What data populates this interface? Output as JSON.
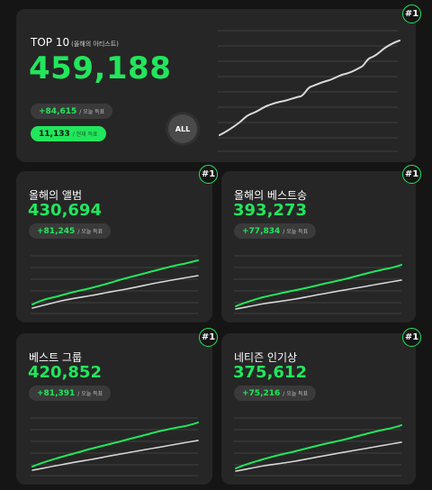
{
  "top_card": {
    "badge": "#1",
    "title": "TOP 10",
    "subtitle": "(올해의 아티스트)",
    "total": "459,188",
    "today_delta": "+84,615",
    "today_label": "/ 오늘 득표",
    "live_count": "11,133",
    "live_label": "/ 현재 득표",
    "all_button": "ALL"
  },
  "categories": [
    {
      "key": "album",
      "title": "올해의 앨범",
      "total": "430,694",
      "delta": "+81,245",
      "delta_label": "/ 오늘 득표",
      "badge": "#1"
    },
    {
      "key": "best-song",
      "title": "올해의 베스트송",
      "total": "393,273",
      "delta": "+77,834",
      "delta_label": "/ 오늘 득표",
      "badge": "#1"
    },
    {
      "key": "best-group",
      "title": "베스트 그룹",
      "total": "420,852",
      "delta": "+81,391",
      "delta_label": "/ 오늘 득표",
      "badge": "#1"
    },
    {
      "key": "netizen",
      "title": "네티즌 인기상",
      "total": "375,612",
      "delta": "+75,216",
      "delta_label": "/ 오늘 득표",
      "badge": "#1"
    }
  ],
  "colors": {
    "accent": "#22e65c",
    "secondary_line": "#d9d9d9",
    "card": "#262626",
    "background": "#151515"
  }
}
